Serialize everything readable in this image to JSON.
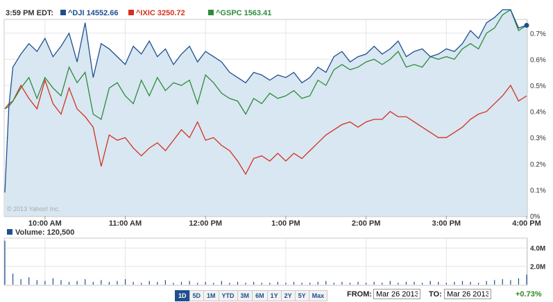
{
  "header": {
    "time_label": "3:59 PM EDT:",
    "series_labels": [
      "^DJI 14552.66",
      "^IXIC 3250.72",
      "^GSPC 1563.41"
    ]
  },
  "watermark": "© 2013 Yahoo! Inc.",
  "volume_label": "Volume: 120,500",
  "controls": {
    "ranges": [
      "1D",
      "5D",
      "1M",
      "YTD",
      "3M",
      "6M",
      "1Y",
      "2Y",
      "5Y",
      "Max"
    ],
    "active_range": "1D",
    "from_label": "FROM:",
    "from_value": "Mar 26 2013",
    "to_label": "TO:",
    "to_value": "Mar 26 2013",
    "change": "+0.73%"
  },
  "colors": {
    "dji": "#1f4f8f",
    "ixic": "#d4301f",
    "gspc": "#2e8b3a",
    "fill": "#d8e7f2"
  },
  "chart_data": [
    {
      "type": "line",
      "y_unit": "%",
      "ylim": [
        0,
        0.75
      ],
      "yticks": [
        "0%",
        "0.1%",
        "0.2%",
        "0.3%",
        "0.4%",
        "0.5%",
        "0.6%",
        "0.7%"
      ],
      "x_ticks": [
        "10:00 AM",
        "11:00 AM",
        "12:00 PM",
        "1:00 PM",
        "2:00 PM",
        "3:00 PM",
        "4:00 PM"
      ],
      "series": [
        {
          "name": "^DJI",
          "x": [
            9.5,
            9.55,
            9.6,
            9.7,
            9.8,
            9.9,
            10,
            10.1,
            10.2,
            10.3,
            10.4,
            10.5,
            10.6,
            10.7,
            10.8,
            10.9,
            11,
            11.1,
            11.2,
            11.3,
            11.4,
            11.5,
            11.6,
            11.7,
            11.8,
            11.9,
            12,
            12.1,
            12.2,
            12.3,
            12.4,
            12.5,
            12.6,
            12.7,
            12.8,
            12.9,
            13,
            13.1,
            13.2,
            13.3,
            13.4,
            13.5,
            13.6,
            13.7,
            13.8,
            13.9,
            14,
            14.1,
            14.2,
            14.3,
            14.4,
            14.5,
            14.6,
            14.7,
            14.8,
            14.9,
            15,
            15.1,
            15.2,
            15.3,
            15.4,
            15.5,
            15.6,
            15.7,
            15.8,
            15.9,
            16
          ],
          "values": [
            0.09,
            0.42,
            0.57,
            0.62,
            0.66,
            0.63,
            0.68,
            0.61,
            0.65,
            0.7,
            0.59,
            0.74,
            0.53,
            0.66,
            0.64,
            0.61,
            0.58,
            0.65,
            0.62,
            0.67,
            0.61,
            0.64,
            0.58,
            0.62,
            0.65,
            0.59,
            0.63,
            0.61,
            0.59,
            0.55,
            0.53,
            0.51,
            0.55,
            0.54,
            0.52,
            0.54,
            0.53,
            0.55,
            0.51,
            0.53,
            0.57,
            0.55,
            0.61,
            0.63,
            0.59,
            0.61,
            0.62,
            0.65,
            0.62,
            0.64,
            0.67,
            0.61,
            0.63,
            0.64,
            0.61,
            0.62,
            0.64,
            0.63,
            0.66,
            0.71,
            0.68,
            0.74,
            0.76,
            0.79,
            0.79,
            0.72,
            0.73
          ]
        },
        {
          "name": "^IXIC",
          "x": [
            9.5,
            9.55,
            9.6,
            9.7,
            9.8,
            9.9,
            10,
            10.1,
            10.2,
            10.3,
            10.4,
            10.5,
            10.6,
            10.7,
            10.8,
            10.9,
            11,
            11.1,
            11.2,
            11.3,
            11.4,
            11.5,
            11.6,
            11.7,
            11.8,
            11.9,
            12,
            12.1,
            12.2,
            12.3,
            12.4,
            12.5,
            12.6,
            12.7,
            12.8,
            12.9,
            13,
            13.1,
            13.2,
            13.3,
            13.4,
            13.5,
            13.6,
            13.7,
            13.8,
            13.9,
            14,
            14.1,
            14.2,
            14.3,
            14.4,
            14.5,
            14.6,
            14.7,
            14.8,
            14.9,
            15,
            15.1,
            15.2,
            15.3,
            15.4,
            15.5,
            15.6,
            15.7,
            15.8,
            15.9,
            16
          ],
          "values": [
            0.41,
            0.43,
            0.44,
            0.5,
            0.45,
            0.41,
            0.52,
            0.43,
            0.39,
            0.49,
            0.41,
            0.38,
            0.34,
            0.19,
            0.31,
            0.29,
            0.3,
            0.26,
            0.23,
            0.26,
            0.28,
            0.25,
            0.29,
            0.33,
            0.3,
            0.36,
            0.29,
            0.3,
            0.27,
            0.25,
            0.21,
            0.16,
            0.22,
            0.23,
            0.21,
            0.24,
            0.21,
            0.24,
            0.22,
            0.25,
            0.28,
            0.31,
            0.33,
            0.35,
            0.36,
            0.34,
            0.36,
            0.37,
            0.37,
            0.4,
            0.38,
            0.38,
            0.36,
            0.34,
            0.32,
            0.3,
            0.3,
            0.32,
            0.34,
            0.37,
            0.39,
            0.4,
            0.43,
            0.46,
            0.5,
            0.44,
            0.46
          ]
        },
        {
          "name": "^GSPC",
          "x": [
            9.5,
            9.55,
            9.6,
            9.7,
            9.8,
            9.9,
            10,
            10.1,
            10.2,
            10.3,
            10.4,
            10.5,
            10.6,
            10.7,
            10.8,
            10.9,
            11,
            11.1,
            11.2,
            11.3,
            11.4,
            11.5,
            11.6,
            11.7,
            11.8,
            11.9,
            12,
            12.1,
            12.2,
            12.3,
            12.4,
            12.5,
            12.6,
            12.7,
            12.8,
            12.9,
            13,
            13.1,
            13.2,
            13.3,
            13.4,
            13.5,
            13.6,
            13.7,
            13.8,
            13.9,
            14,
            14.1,
            14.2,
            14.3,
            14.4,
            14.5,
            14.6,
            14.7,
            14.8,
            14.9,
            15,
            15.1,
            15.2,
            15.3,
            15.4,
            15.5,
            15.6,
            15.7,
            15.8,
            15.9,
            16
          ],
          "values": [
            0.41,
            0.42,
            0.44,
            0.49,
            0.53,
            0.45,
            0.53,
            0.49,
            0.46,
            0.57,
            0.51,
            0.55,
            0.39,
            0.37,
            0.49,
            0.51,
            0.46,
            0.43,
            0.52,
            0.46,
            0.53,
            0.48,
            0.51,
            0.5,
            0.52,
            0.43,
            0.54,
            0.51,
            0.47,
            0.45,
            0.44,
            0.39,
            0.45,
            0.43,
            0.47,
            0.45,
            0.46,
            0.48,
            0.45,
            0.46,
            0.52,
            0.5,
            0.56,
            0.58,
            0.56,
            0.57,
            0.59,
            0.6,
            0.58,
            0.6,
            0.63,
            0.57,
            0.58,
            0.57,
            0.61,
            0.6,
            0.61,
            0.6,
            0.64,
            0.66,
            0.64,
            0.7,
            0.72,
            0.77,
            0.79,
            0.71,
            0.73
          ]
        }
      ]
    },
    {
      "type": "bar",
      "name": "Volume",
      "y_unit": "M",
      "ylim": [
        0,
        5
      ],
      "yticks": [
        "2.0M",
        "4.0M"
      ],
      "note_series": "volume bars",
      "x_start": 9.5,
      "x_end": 16,
      "values": [
        4.8,
        1.2,
        0.6,
        0.8,
        0.5,
        0.4,
        0.7,
        0.5,
        0.3,
        0.4,
        0.6,
        0.3,
        0.5,
        0.3,
        0.4,
        0.6,
        0.3,
        0.2,
        0.4,
        0.3,
        0.5,
        0.2,
        0.3,
        0.4,
        0.2,
        0.3,
        0.2,
        0.4,
        0.2,
        0.3,
        0.2,
        0.3,
        0.2,
        0.2,
        0.3,
        0.2,
        0.3,
        0.2,
        0.2,
        0.3,
        0.4,
        0.2,
        0.3,
        0.2,
        0.3,
        0.2,
        0.3,
        0.2,
        0.4,
        0.2,
        0.3,
        0.3,
        0.2,
        0.4,
        0.3,
        0.2,
        0.3,
        0.4,
        0.3,
        0.2,
        0.4,
        0.5,
        0.6,
        0.5,
        0.7,
        1.1
      ]
    }
  ]
}
